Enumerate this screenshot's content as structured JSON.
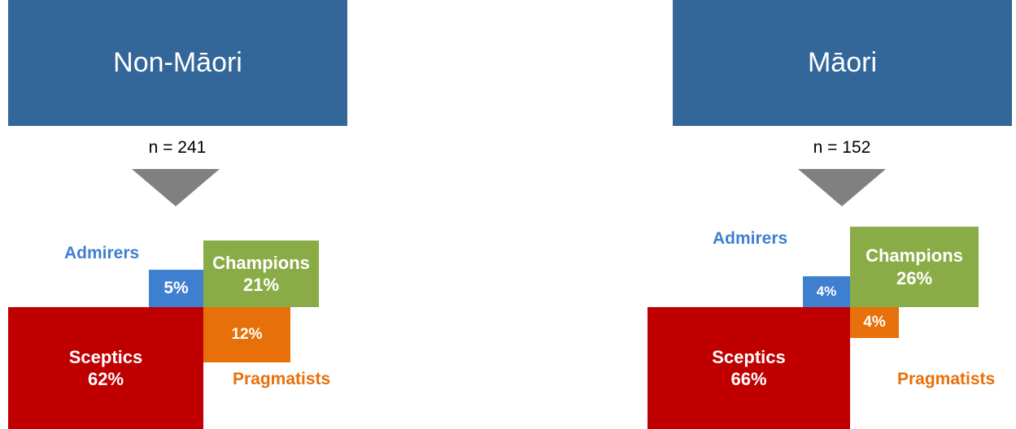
{
  "colors": {
    "group_header": "#336699",
    "admirers": "#3f7fd0",
    "champions": "#8aac46",
    "pragmatists": "#e8700a",
    "sceptics": "#c00000",
    "arrow": "#808080"
  },
  "left": {
    "title": "Non-Māori",
    "n_label": "n = 241",
    "admirers": {
      "label": "Admirers",
      "pct": "5%"
    },
    "champions": {
      "label": "Champions",
      "pct": "21%"
    },
    "pragmatists": {
      "label": "Pragmatists",
      "pct": "12%"
    },
    "sceptics": {
      "label": "Sceptics",
      "pct": "62%"
    }
  },
  "right": {
    "title": "Māori",
    "n_label": "n = 152",
    "admirers": {
      "label": "Admirers",
      "pct": "4%"
    },
    "champions": {
      "label": "Champions",
      "pct": "26%"
    },
    "pragmatists": {
      "label": "Pragmatists",
      "pct": "4%"
    },
    "sceptics": {
      "label": "Sceptics",
      "pct": "66%"
    }
  }
}
